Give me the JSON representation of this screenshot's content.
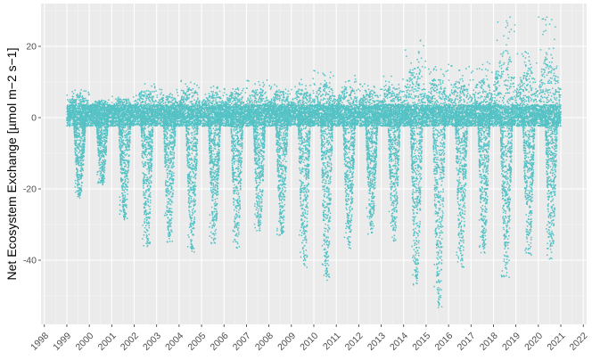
{
  "chart_data": {
    "type": "scatter",
    "title": "",
    "xlabel": "",
    "ylabel": "Net Ecosystem Exchange [µmol m−2 s−1]",
    "x_ticks": [
      "1998",
      "1999",
      "2000",
      "2001",
      "2002",
      "2003",
      "2004",
      "2005",
      "2006",
      "2007",
      "2008",
      "2009",
      "2010",
      "2011",
      "2012",
      "2013",
      "2014",
      "2015",
      "2016",
      "2017",
      "2018",
      "2019",
      "2020",
      "2021",
      "2022"
    ],
    "y_ticks": [
      -40,
      -20,
      0,
      20
    ],
    "xlim": [
      1997.85,
      2022.15
    ],
    "ylim": [
      -58,
      32
    ],
    "grid": true,
    "legend": "none",
    "point_color": "#21b3b7",
    "panel_color": "#ebebeb",
    "data_range": [
      1999.0,
      2021.0
    ],
    "series": [
      {
        "values_description_note": "",
        "yearly_seasonal_envelope": [
          {
            "year": 1999,
            "min": -23,
            "max": 8
          },
          {
            "year": 2000,
            "min": -19,
            "max": 5
          },
          {
            "year": 2001,
            "min": -29,
            "max": 6
          },
          {
            "year": 2002,
            "min": -37,
            "max": 10
          },
          {
            "year": 2003,
            "min": -35,
            "max": 8
          },
          {
            "year": 2004,
            "min": -38,
            "max": 11
          },
          {
            "year": 2005,
            "min": -36,
            "max": 9
          },
          {
            "year": 2006,
            "min": -37,
            "max": 9
          },
          {
            "year": 2007,
            "min": -32,
            "max": 11
          },
          {
            "year": 2008,
            "min": -33,
            "max": 10
          },
          {
            "year": 2009,
            "min": -42,
            "max": 11
          },
          {
            "year": 2010,
            "min": -46,
            "max": 14
          },
          {
            "year": 2011,
            "min": -37,
            "max": 12
          },
          {
            "year": 2012,
            "min": -33,
            "max": 10
          },
          {
            "year": 2013,
            "min": -35,
            "max": 12
          },
          {
            "year": 2014,
            "min": -47,
            "max": 22
          },
          {
            "year": 2015,
            "min": -54,
            "max": 16
          },
          {
            "year": 2016,
            "min": -42,
            "max": 15
          },
          {
            "year": 2017,
            "min": -38,
            "max": 16
          },
          {
            "year": 2018,
            "min": -45,
            "max": 30
          },
          {
            "year": 2019,
            "min": -39,
            "max": 21
          },
          {
            "year": 2020,
            "min": -40,
            "max": 29
          }
        ]
      }
    ]
  }
}
